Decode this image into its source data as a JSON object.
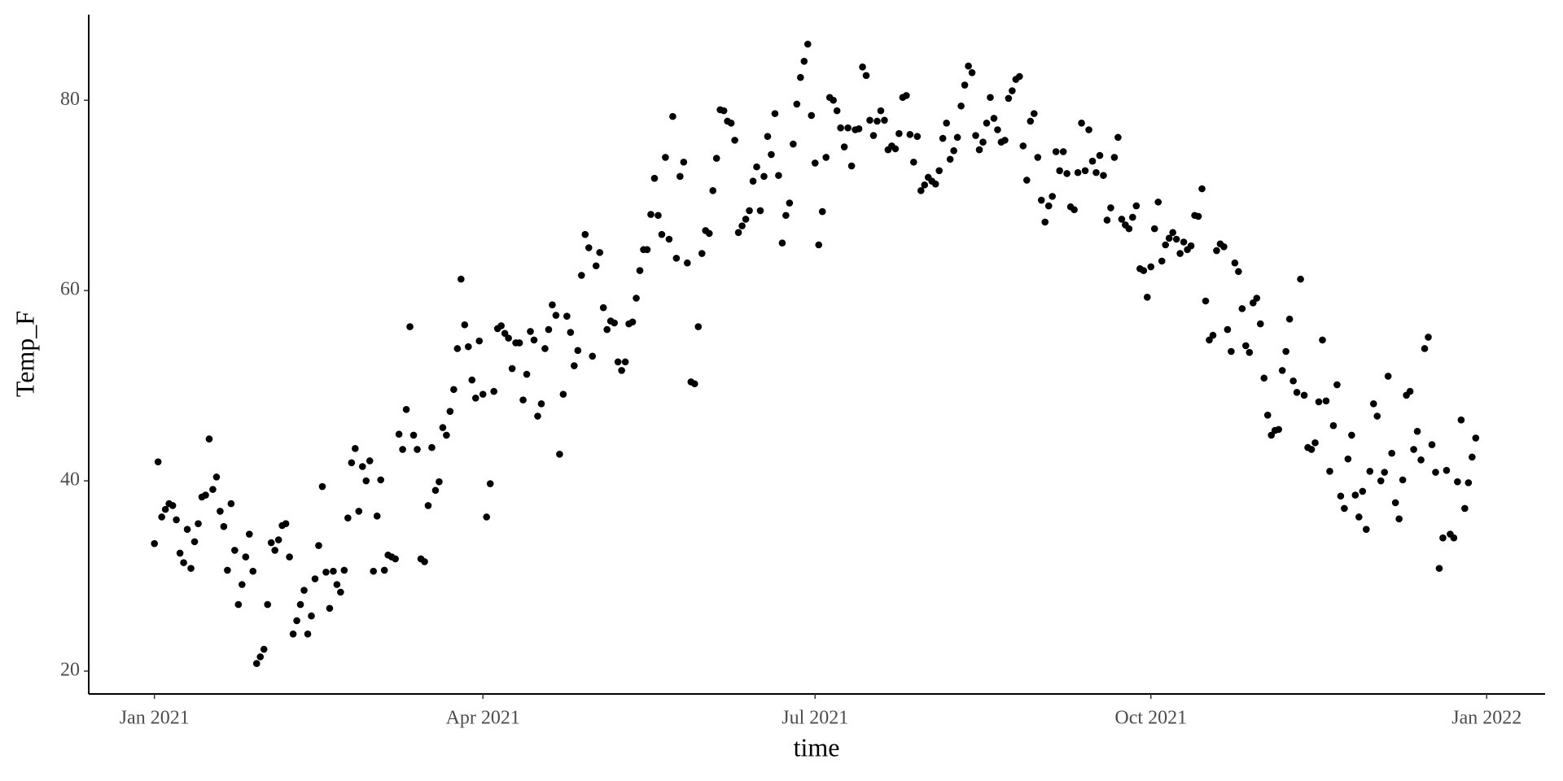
{
  "chart_data": {
    "type": "scatter",
    "x_label": "time",
    "y_label": "Temp_F",
    "color": "#000000",
    "grid": false,
    "xlim": [
      -18,
      381
    ],
    "ylim": [
      17.6,
      89
    ],
    "xticks": [
      {
        "value": 0,
        "label": "Jan 2021"
      },
      {
        "value": 90,
        "label": "Apr 2021"
      },
      {
        "value": 181,
        "label": "Jul 2021"
      },
      {
        "value": 273,
        "label": "Oct 2021"
      },
      {
        "value": 365,
        "label": "Jan 2022"
      }
    ],
    "yticks": [
      20,
      40,
      60,
      80
    ],
    "x": [
      0,
      1,
      2,
      3,
      4,
      5,
      6,
      7,
      8,
      9,
      10,
      11,
      12,
      13,
      14,
      15,
      16,
      17,
      18,
      19,
      20,
      21,
      22,
      23,
      24,
      25,
      26,
      27,
      28,
      29,
      30,
      31,
      32,
      33,
      34,
      35,
      36,
      37,
      38,
      39,
      40,
      41,
      42,
      43,
      44,
      45,
      46,
      47,
      48,
      49,
      50,
      51,
      52,
      53,
      54,
      55,
      56,
      57,
      58,
      59,
      60,
      61,
      62,
      63,
      64,
      65,
      66,
      67,
      68,
      69,
      70,
      71,
      72,
      73,
      74,
      75,
      76,
      77,
      78,
      79,
      80,
      81,
      82,
      83,
      84,
      85,
      86,
      87,
      88,
      89,
      90,
      91,
      92,
      93,
      94,
      95,
      96,
      97,
      98,
      99,
      100,
      101,
      102,
      103,
      104,
      105,
      106,
      107,
      108,
      109,
      110,
      111,
      112,
      113,
      114,
      115,
      116,
      117,
      118,
      119,
      120,
      121,
      122,
      123,
      124,
      125,
      126,
      127,
      128,
      129,
      130,
      131,
      132,
      133,
      134,
      135,
      136,
      137,
      138,
      139,
      140,
      141,
      142,
      143,
      144,
      145,
      146,
      147,
      148,
      149,
      150,
      151,
      152,
      153,
      154,
      155,
      156,
      157,
      158,
      159,
      160,
      161,
      162,
      163,
      164,
      165,
      166,
      167,
      168,
      169,
      170,
      171,
      172,
      173,
      174,
      175,
      176,
      177,
      178,
      179,
      180,
      181,
      182,
      183,
      184,
      185,
      186,
      187,
      188,
      189,
      190,
      191,
      192,
      193,
      194,
      195,
      196,
      197,
      198,
      199,
      200,
      201,
      202,
      203,
      204,
      205,
      206,
      207,
      208,
      209,
      210,
      211,
      212,
      213,
      214,
      215,
      216,
      217,
      218,
      219,
      220,
      221,
      222,
      223,
      224,
      225,
      226,
      227,
      228,
      229,
      230,
      231,
      232,
      233,
      234,
      235,
      236,
      237,
      238,
      239,
      240,
      241,
      242,
      243,
      244,
      245,
      246,
      247,
      248,
      249,
      250,
      251,
      252,
      253,
      254,
      255,
      256,
      257,
      258,
      259,
      260,
      261,
      262,
      263,
      264,
      265,
      266,
      267,
      268,
      269,
      270,
      271,
      272,
      273,
      274,
      275,
      276,
      277,
      278,
      279,
      280,
      281,
      282,
      283,
      284,
      285,
      286,
      287,
      288,
      289,
      290,
      291,
      292,
      293,
      294,
      295,
      296,
      297,
      298,
      299,
      300,
      301,
      302,
      303,
      304,
      305,
      306,
      307,
      308,
      309,
      310,
      311,
      312,
      313,
      314,
      315,
      316,
      317,
      318,
      319,
      320,
      321,
      322,
      323,
      324,
      325,
      326,
      327,
      328,
      329,
      330,
      331,
      332,
      333,
      334,
      335,
      336,
      337,
      338,
      339,
      340,
      341,
      342,
      343,
      344,
      345,
      346,
      347,
      348,
      349,
      350,
      351,
      352,
      353,
      354,
      355,
      356,
      357,
      358,
      359,
      360,
      361,
      362
    ],
    "values": [
      33.4,
      42.0,
      36.2,
      37.0,
      37.6,
      37.4,
      35.9,
      32.4,
      31.4,
      34.9,
      30.8,
      33.6,
      35.5,
      38.3,
      38.5,
      44.4,
      39.1,
      40.4,
      36.8,
      35.2,
      30.6,
      37.6,
      32.7,
      27.0,
      29.1,
      32.0,
      34.4,
      30.5,
      20.8,
      21.5,
      22.3,
      27.0,
      33.5,
      32.7,
      33.8,
      35.3,
      35.5,
      32.0,
      23.9,
      25.3,
      27.0,
      28.5,
      23.9,
      25.8,
      29.7,
      33.2,
      39.4,
      30.4,
      26.6,
      30.5,
      29.1,
      28.3,
      30.6,
      36.1,
      41.9,
      43.4,
      36.8,
      41.5,
      40.0,
      42.1,
      30.5,
      36.3,
      40.1,
      30.6,
      32.2,
      32.0,
      31.8,
      44.9,
      43.3,
      47.5,
      56.2,
      44.8,
      43.3,
      31.8,
      31.5,
      37.4,
      43.5,
      39.0,
      39.9,
      45.6,
      44.8,
      47.3,
      49.6,
      53.9,
      61.2,
      56.4,
      54.1,
      50.6,
      48.7,
      54.7,
      49.1,
      36.2,
      39.7,
      49.4,
      56.0,
      56.3,
      55.5,
      55.0,
      51.8,
      54.5,
      54.5,
      48.5,
      51.2,
      55.7,
      54.8,
      46.8,
      48.1,
      53.9,
      55.9,
      58.5,
      57.4,
      42.8,
      49.1,
      57.3,
      55.6,
      52.1,
      53.7,
      61.6,
      65.9,
      64.5,
      53.1,
      62.6,
      64.0,
      58.2,
      55.9,
      56.8,
      56.6,
      52.5,
      51.6,
      52.5,
      56.5,
      56.7,
      59.2,
      62.1,
      64.3,
      64.3,
      68.0,
      71.8,
      67.9,
      65.9,
      74.0,
      65.4,
      78.3,
      63.4,
      72.0,
      73.5,
      62.9,
      50.4,
      50.2,
      56.2,
      63.9,
      66.3,
      66.0,
      70.5,
      73.9,
      79.0,
      78.9,
      77.8,
      77.6,
      75.8,
      66.1,
      66.8,
      67.5,
      68.4,
      71.5,
      73.0,
      68.4,
      72.0,
      76.2,
      74.3,
      78.6,
      72.1,
      65.0,
      67.9,
      69.2,
      75.4,
      79.6,
      82.4,
      84.1,
      85.9,
      78.4,
      73.4,
      64.8,
      68.3,
      74.0,
      80.3,
      80.0,
      78.9,
      77.1,
      75.1,
      77.1,
      73.1,
      76.9,
      77.0,
      83.5,
      82.6,
      77.9,
      76.3,
      77.8,
      78.9,
      77.9,
      74.8,
      75.2,
      74.9,
      76.5,
      80.3,
      80.5,
      76.4,
      73.5,
      76.2,
      70.5,
      71.1,
      71.9,
      71.5,
      71.2,
      72.6,
      76.0,
      77.6,
      73.8,
      74.7,
      76.1,
      79.4,
      81.6,
      83.6,
      82.9,
      76.3,
      74.8,
      75.6,
      77.6,
      80.3,
      78.1,
      76.9,
      75.6,
      75.8,
      80.2,
      81.0,
      82.2,
      82.5,
      75.2,
      71.6,
      77.8,
      78.6,
      74.0,
      69.5,
      67.2,
      68.9,
      69.9,
      74.6,
      72.6,
      74.6,
      72.3,
      68.8,
      68.5,
      72.4,
      77.6,
      72.6,
      76.9,
      73.6,
      72.4,
      74.2,
      72.1,
      67.4,
      68.7,
      74.0,
      76.1,
      67.5,
      66.9,
      66.5,
      67.7,
      68.9,
      62.3,
      62.1,
      59.3,
      62.5,
      66.5,
      69.3,
      63.1,
      64.8,
      65.5,
      66.1,
      65.4,
      63.9,
      65.1,
      64.3,
      64.7,
      67.9,
      67.8,
      70.7,
      58.9,
      54.8,
      55.3,
      64.2,
      64.9,
      64.6,
      55.9,
      53.6,
      62.9,
      62.0,
      58.1,
      54.2,
      53.5,
      58.7,
      59.2,
      56.5,
      50.8,
      46.9,
      44.8,
      45.3,
      45.4,
      51.6,
      53.6,
      57.0,
      50.5,
      49.3,
      61.2,
      49.0,
      43.5,
      43.3,
      44.0,
      48.3,
      54.8,
      48.4,
      41.0,
      45.8,
      50.1,
      38.4,
      37.1,
      42.3,
      44.8,
      38.5,
      36.2,
      38.9,
      34.9,
      41.0,
      48.1,
      46.8,
      40.0,
      40.9,
      51.0,
      42.9,
      37.7,
      36.0,
      40.1,
      49.0,
      49.4,
      43.3,
      45.2,
      42.2,
      53.9,
      55.1,
      43.8,
      40.9,
      30.8,
      34.0,
      41.1,
      34.4,
      34.0,
      39.9,
      46.4,
      37.1,
      39.8,
      42.5,
      44.5
    ]
  }
}
